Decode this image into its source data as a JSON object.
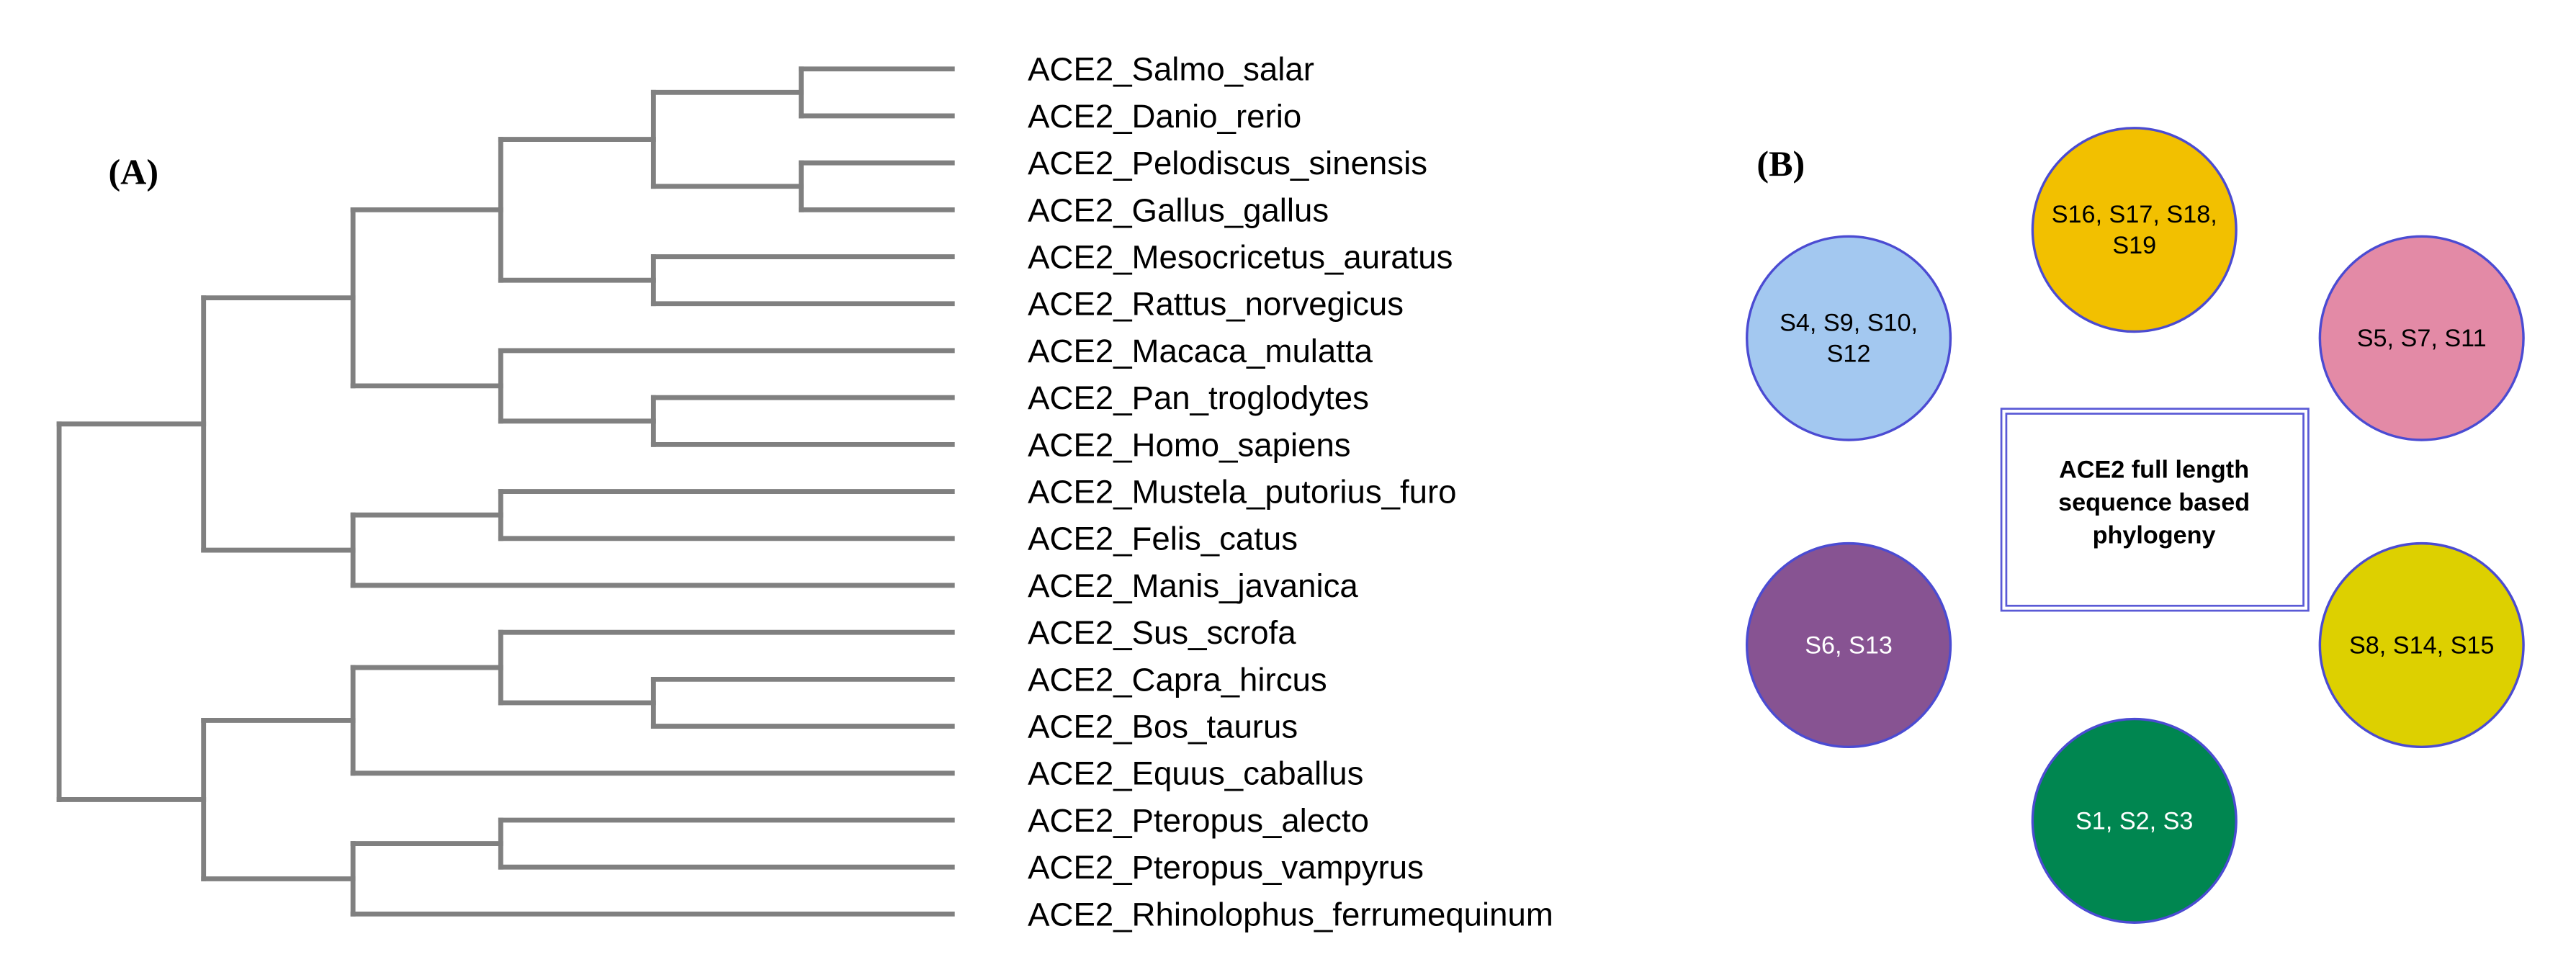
{
  "panel_a": {
    "label": "(A)",
    "leaves": [
      "ACE2_Salmo_salar",
      "ACE2_Danio_rerio",
      "ACE2_Pelodiscus_sinensis",
      "ACE2_Gallus_gallus",
      "ACE2_Mesocricetus_auratus",
      "ACE2_Rattus_norvegicus",
      "ACE2_Macaca_mulatta",
      "ACE2_Pan_troglodytes",
      "ACE2_Homo_sapiens",
      "ACE2_Mustela_putorius_furo",
      "ACE2_Felis_catus",
      "ACE2_Manis_javanica",
      "ACE2_Sus_scrofa",
      "ACE2_Capra_hircus",
      "ACE2_Bos_taurus",
      "ACE2_Equus_caballus",
      "ACE2_Pteropus_alecto",
      "ACE2_Pteropus_vampyrus",
      "ACE2_Rhinolophus_ferrumequinum"
    ],
    "tree": {
      "children": [
        {
          "children": [
            {
              "children": [
                {
                  "children": [
                    {
                      "children": [
                        {
                          "leaf": 0
                        },
                        {
                          "leaf": 1
                        }
                      ]
                    },
                    {
                      "children": [
                        {
                          "leaf": 2
                        },
                        {
                          "leaf": 3
                        }
                      ]
                    }
                  ]
                },
                {
                  "children": [
                    {
                      "leaf": 4
                    },
                    {
                      "leaf": 5
                    }
                  ]
                }
              ]
            },
            {
              "children": [
                {
                  "leaf": 6
                },
                {
                  "children": [
                    {
                      "leaf": 7
                    },
                    {
                      "leaf": 8
                    }
                  ]
                }
              ]
            }
          ]
        },
        {
          "children": [
            {
              "children": [
                {
                  "leaf": 9
                },
                {
                  "leaf": 10
                }
              ]
            },
            {
              "leaf": 11
            }
          ]
        }
      ]
    },
    "tree2": {
      "children": [
        {
          "children": [
            {
              "children": [
                {
                  "leaf": 12
                },
                {
                  "children": [
                    {
                      "leaf": 13
                    },
                    {
                      "leaf": 14
                    }
                  ]
                }
              ]
            },
            {
              "leaf": 15
            }
          ]
        },
        {
          "children": [
            {
              "children": [
                {
                  "leaf": 16
                },
                {
                  "leaf": 17
                }
              ]
            },
            {
              "leaf": 18
            }
          ]
        }
      ]
    }
  },
  "panel_b": {
    "label": "(B)",
    "center_lines": [
      "ACE2 full length",
      "sequence based",
      "phylogeny"
    ],
    "clusters": [
      {
        "id": "top",
        "lines": [
          "S16, S17, S18,",
          "S19"
        ],
        "color": "#f2c000",
        "text_color": "#000000"
      },
      {
        "id": "upper-left",
        "lines": [
          "S4, S9, S10,",
          "S12"
        ],
        "color": "#a3c8f0",
        "text_color": "#000000"
      },
      {
        "id": "upper-right",
        "lines": [
          "S5, S7, S11"
        ],
        "color": "#e38aa6",
        "text_color": "#000000"
      },
      {
        "id": "lower-left",
        "lines": [
          "S6, S13"
        ],
        "color": "#875392",
        "text_color": "#ffffff"
      },
      {
        "id": "lower-right",
        "lines": [
          "S8, S14, S15"
        ],
        "color": "#ddd000",
        "text_color": "#000000"
      },
      {
        "id": "bottom",
        "lines": [
          "S1, S2, S3"
        ],
        "color": "#008650",
        "text_color": "#ffffff"
      }
    ]
  }
}
